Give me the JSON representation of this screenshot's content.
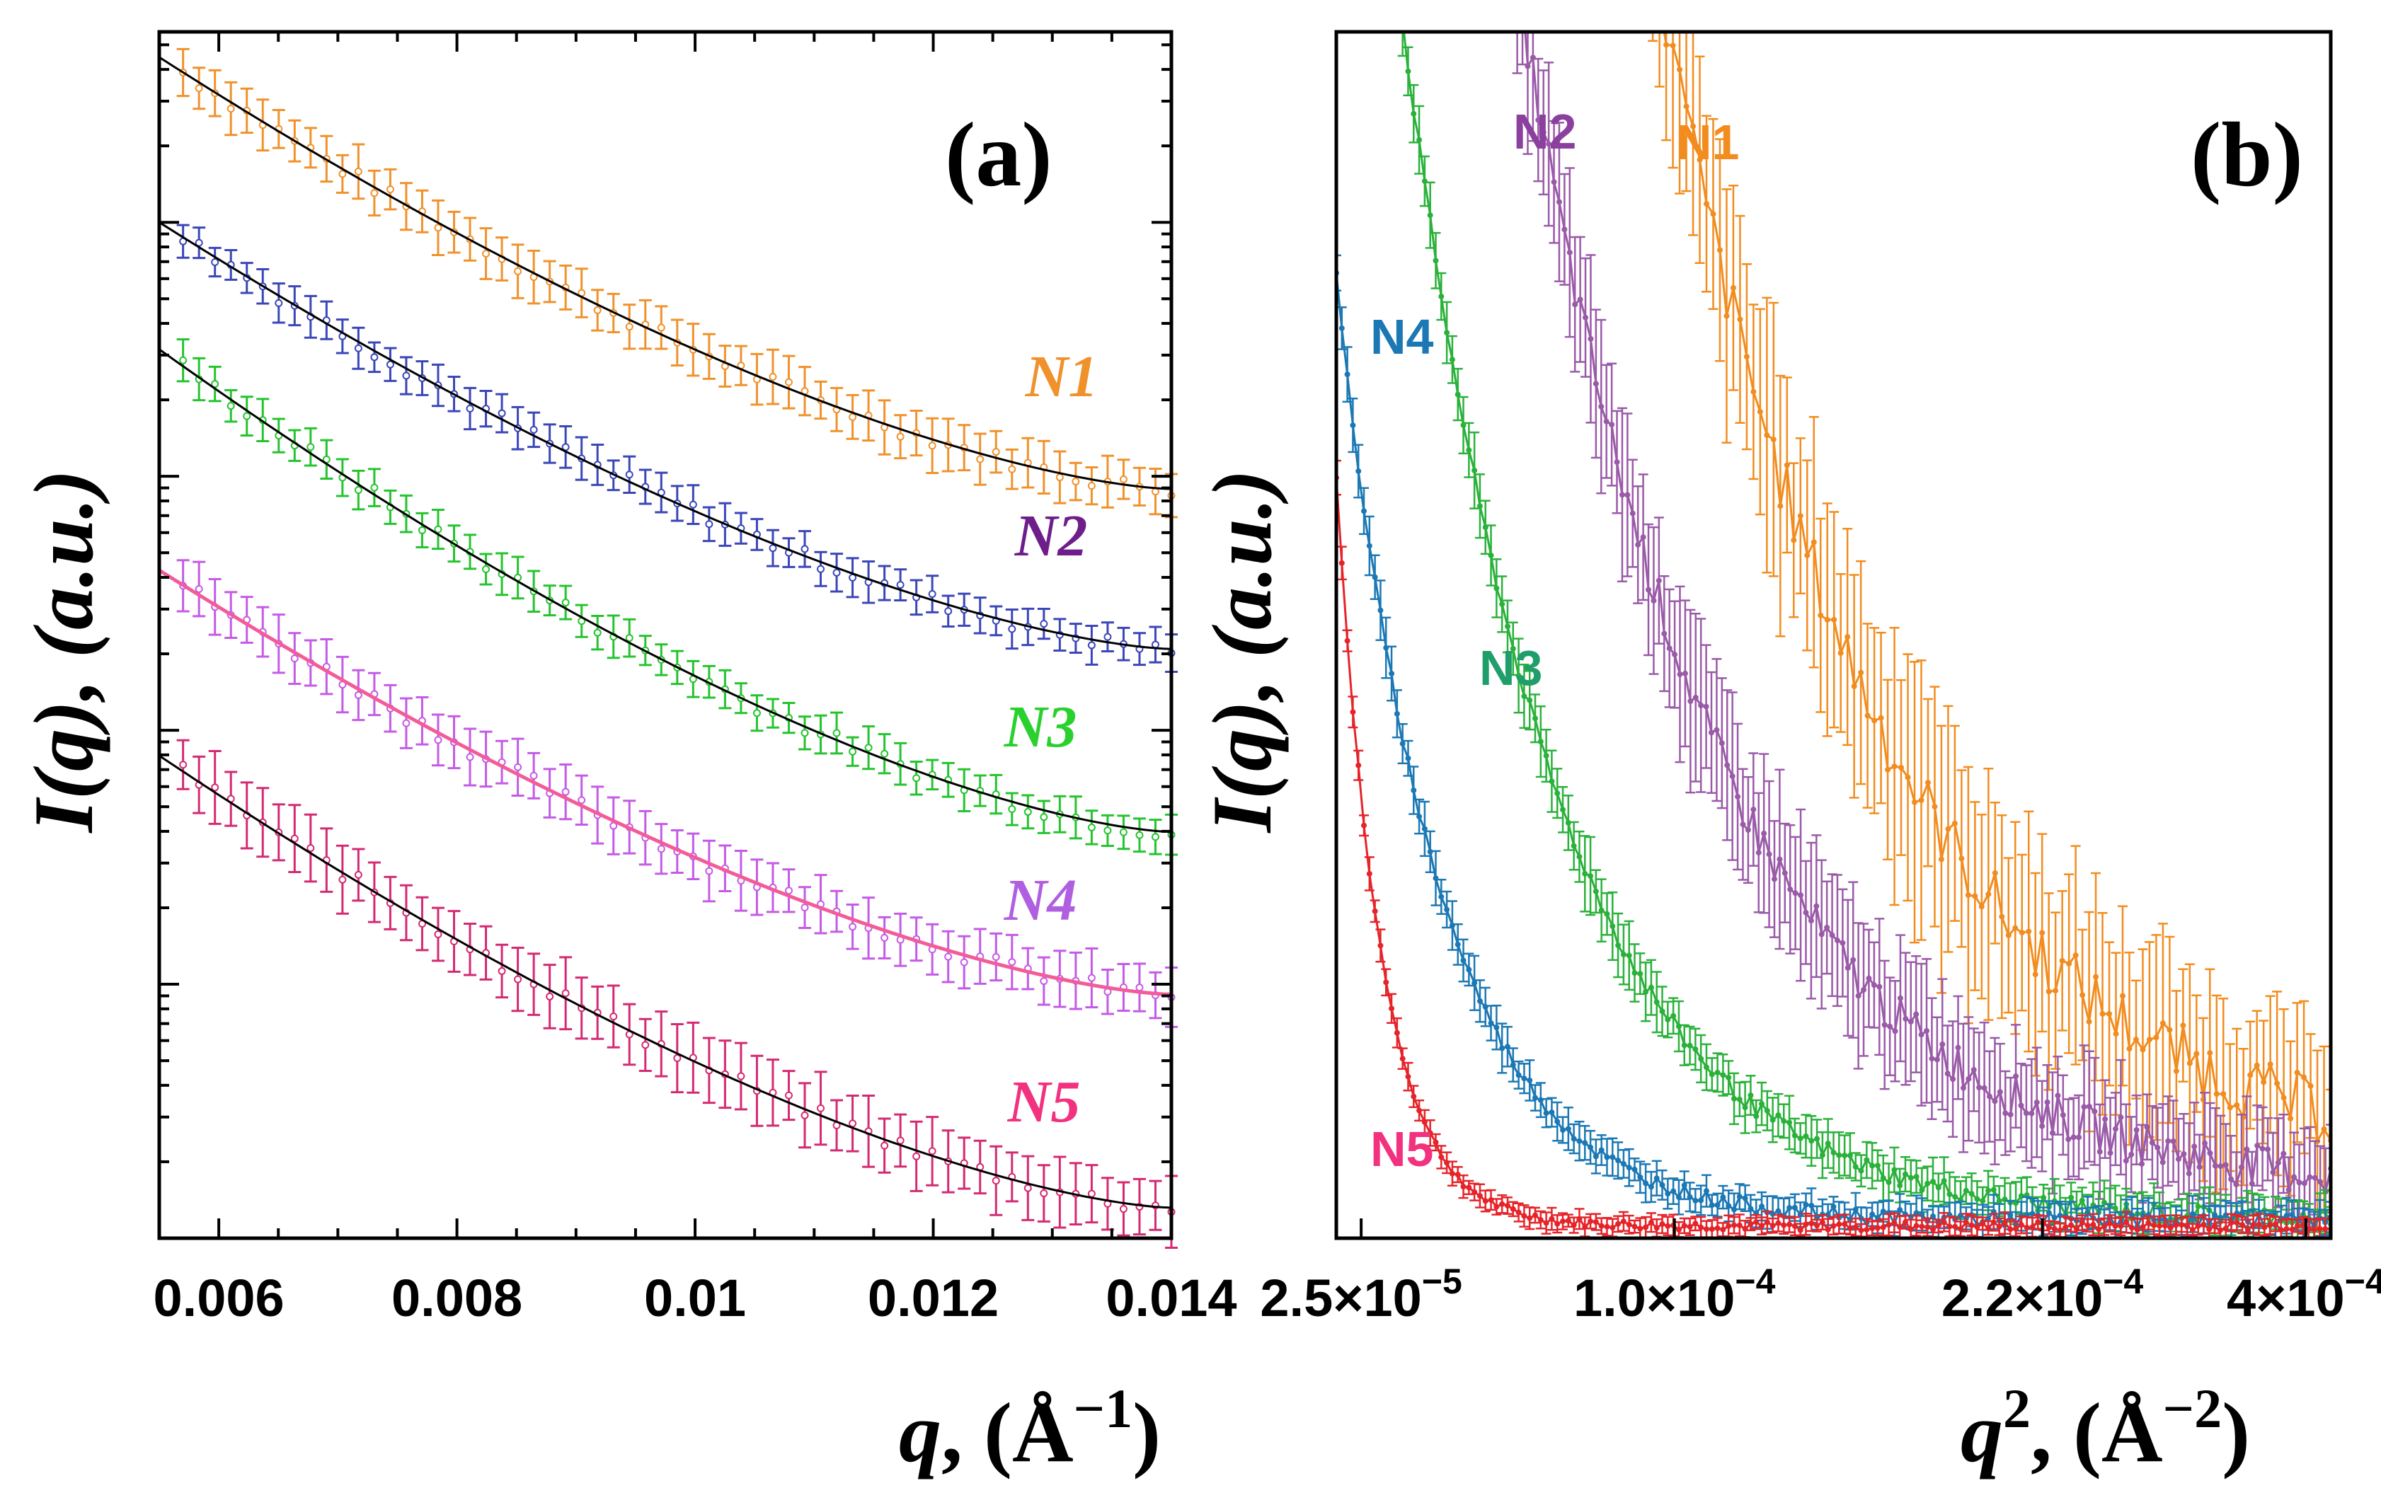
{
  "chart_data": [
    {
      "type": "scatter",
      "panel_label": "(a)",
      "xlabel_main": "q",
      "xlabel_unit": ", (Å",
      "xlabel_sup": "−1",
      "xlabel_close": ")",
      "ylabel": "I(q), (a.u.)",
      "yscale": "log",
      "xlim": [
        0.0055,
        0.014
      ],
      "ylim_decades": [
        0,
        4.75
      ],
      "x_ticks": [
        {
          "value": 0.006,
          "label": "0.006"
        },
        {
          "value": 0.008,
          "label": "0.008"
        },
        {
          "value": 0.01,
          "label": "0.01"
        },
        {
          "value": 0.012,
          "label": "0.012"
        },
        {
          "value": 0.014,
          "label": "0.014"
        }
      ],
      "series": [
        {
          "name": "N1",
          "color": "#f0922c",
          "fit_color": "#000000",
          "log_start": 4.65,
          "log_end": 2.95,
          "exponent": 1.5,
          "error": 0.09
        },
        {
          "name": "N2",
          "color": "#3b46b8",
          "fit_color": "#000000",
          "log_start": 4.0,
          "log_end": 2.32,
          "exponent": 1.5,
          "error": 0.07
        },
        {
          "name": "N3",
          "color": "#24c42e",
          "fit_color": "#000000",
          "log_start": 3.5,
          "log_end": 1.6,
          "exponent": 1.5,
          "error": 0.07
        },
        {
          "name": "N4",
          "color": "#c45be6",
          "fit_color": "#f25c98",
          "log_start": 2.63,
          "log_end": 0.96,
          "exponent": 1.5,
          "error": 0.1
        },
        {
          "name": "N5",
          "color": "#d42a73",
          "fit_color": "#000000",
          "log_start": 1.9,
          "log_end": 0.12,
          "exponent": 1.5,
          "error": 0.12
        }
      ],
      "series_label_colors": {
        "N1": "#f0922c",
        "N2": "#6e1e8a",
        "N3": "#2ad12e",
        "N4": "#b05fe0",
        "N5": "#f2317f"
      }
    },
    {
      "type": "scatter",
      "panel_label": "(b)",
      "xlabel_main": "q",
      "xlabel_sup_q": "2",
      "xlabel_unit": ", (Å",
      "xlabel_sup": "−2",
      "xlabel_close": ")",
      "ylabel": "I(q), (a.u.)",
      "xlim": [
        0,
        1
      ],
      "x_ticks": [
        {
          "value": 0.025,
          "label": "2.5×10",
          "exp": "−5"
        },
        {
          "value": 0.34,
          "label": "1.0×10",
          "exp": "−4"
        },
        {
          "value": 0.71,
          "label": "2.2×10",
          "exp": "−4"
        },
        {
          "value": 0.975,
          "label": "4×10",
          "exp": "−4"
        }
      ],
      "series": [
        {
          "name": "N1",
          "color": "#f28c1e",
          "x0": 0.2,
          "tau": 0.23,
          "amp": 1.7,
          "base": 0.05,
          "error": 0.09
        },
        {
          "name": "N2",
          "color": "#9a5aa8",
          "x0": 0.06,
          "tau": 0.2,
          "amp": 1.85,
          "base": 0.035,
          "error": 0.06
        },
        {
          "name": "N3",
          "color": "#2ab13a",
          "x0": 0.0,
          "tau": 0.15,
          "amp": 1.55,
          "base": 0.015,
          "error": 0.025
        },
        {
          "name": "N4",
          "color": "#1b78b4",
          "x0": 0.0,
          "tau": 0.1,
          "amp": 0.78,
          "base": 0.015,
          "error": 0.02
        },
        {
          "name": "N5",
          "color": "#e5242a",
          "x0": 0.0,
          "tau": 0.045,
          "amp": 0.62,
          "base": 0.01,
          "error": 0.012
        }
      ],
      "series_label_colors": {
        "N1": "#f28c1e",
        "N2": "#8b3f9e",
        "N3": "#1f9e6b",
        "N4": "#1b78b4",
        "N5": "#f2317f"
      }
    }
  ]
}
